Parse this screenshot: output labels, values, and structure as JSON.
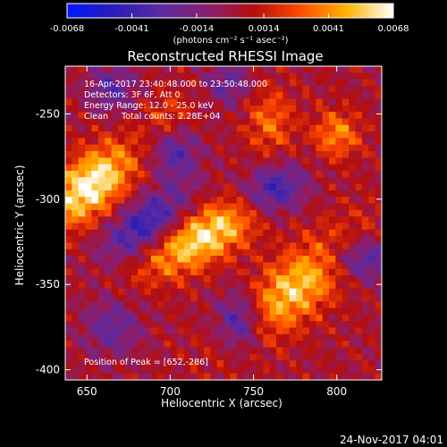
{
  "chart_data": {
    "type": "heatmap",
    "title": "Reconstructed RHESSI Image",
    "xlabel": "Heliocentric X (arcsec)",
    "ylabel": "Heliocentric Y (arcsec)",
    "xlim": [
      637,
      827
    ],
    "ylim": [
      -406,
      -222
    ],
    "x_ticks": [
      650,
      700,
      750,
      800
    ],
    "y_ticks": [
      -250,
      -300,
      -350,
      -400
    ],
    "colorbar": {
      "range": [
        -0.0068,
        0.0068
      ],
      "ticks": [
        "-0.0068",
        "-0.0041",
        "-0.0014",
        "0.0014",
        "0.0041",
        "0.0068"
      ],
      "unit_label": "(photons cm⁻² s⁻¹ asec⁻²)",
      "colormap": [
        "#0018ff",
        "#2a1cb8",
        "#5a2aa0",
        "#8a1f70",
        "#b40e0e",
        "#ff4a00",
        "#ffb400",
        "#ffffff"
      ]
    },
    "info_lines": [
      "16-Apr-2017 23:40:48.000 to 23:50:48.000",
      "Detectors: 3F 6F, Att 0",
      "Energy Range: 12.0 - 25.0 keV",
      "Clean     Total counts: 2.28E+04"
    ],
    "peak_label": "Position of Peak = [652,-286]",
    "peak": [
      652,
      -286
    ],
    "emission_features": [
      {
        "kind": "bright",
        "center": [
          652,
          -292
        ],
        "sigma": [
          12,
          22
        ],
        "angle": 40,
        "amp": 1.0
      },
      {
        "kind": "bright",
        "center": [
          720,
          -322
        ],
        "sigma": [
          11,
          28
        ],
        "angle": 28,
        "amp": 0.9
      },
      {
        "kind": "bright",
        "center": [
          775,
          -352
        ],
        "sigma": [
          13,
          33
        ],
        "angle": 40,
        "amp": 0.78
      },
      {
        "kind": "bright",
        "center": [
          700,
          -252
        ],
        "sigma": [
          10,
          10
        ],
        "angle": 0,
        "amp": 0.35
      },
      {
        "kind": "bright",
        "center": [
          760,
          -255
        ],
        "sigma": [
          14,
          10
        ],
        "angle": 0,
        "amp": 0.45
      },
      {
        "kind": "bright",
        "center": [
          800,
          -262
        ],
        "sigma": [
          10,
          10
        ],
        "angle": 0,
        "amp": 0.55
      },
      {
        "kind": "dark",
        "center": [
          685,
          -315
        ],
        "sigma": [
          10,
          20
        ],
        "angle": 35,
        "amp": -0.75
      },
      {
        "kind": "dark",
        "center": [
          762,
          -295
        ],
        "sigma": [
          10,
          14
        ],
        "angle": 20,
        "amp": -0.8
      },
      {
        "kind": "dark",
        "center": [
          742,
          -372
        ],
        "sigma": [
          12,
          10
        ],
        "angle": 0,
        "amp": -0.8
      },
      {
        "kind": "dark",
        "center": [
          815,
          -335
        ],
        "sigma": [
          9,
          15
        ],
        "angle": 0,
        "amp": -0.65
      },
      {
        "kind": "dark",
        "center": [
          703,
          -272
        ],
        "sigma": [
          12,
          10
        ],
        "angle": 0,
        "amp": -0.55
      },
      {
        "kind": "dark",
        "center": [
          665,
          -235
        ],
        "sigma": [
          10,
          10
        ],
        "angle": 0,
        "amp": -0.5
      },
      {
        "kind": "dark",
        "center": [
          665,
          -375
        ],
        "sigma": [
          12,
          12
        ],
        "angle": 0,
        "amp": -0.45
      },
      {
        "kind": "dark",
        "center": [
          735,
          -232
        ],
        "sigma": [
          9,
          9
        ],
        "angle": 0,
        "amp": -0.45
      }
    ]
  },
  "footer": {
    "timestamp": "24-Nov-2017 04:01"
  }
}
